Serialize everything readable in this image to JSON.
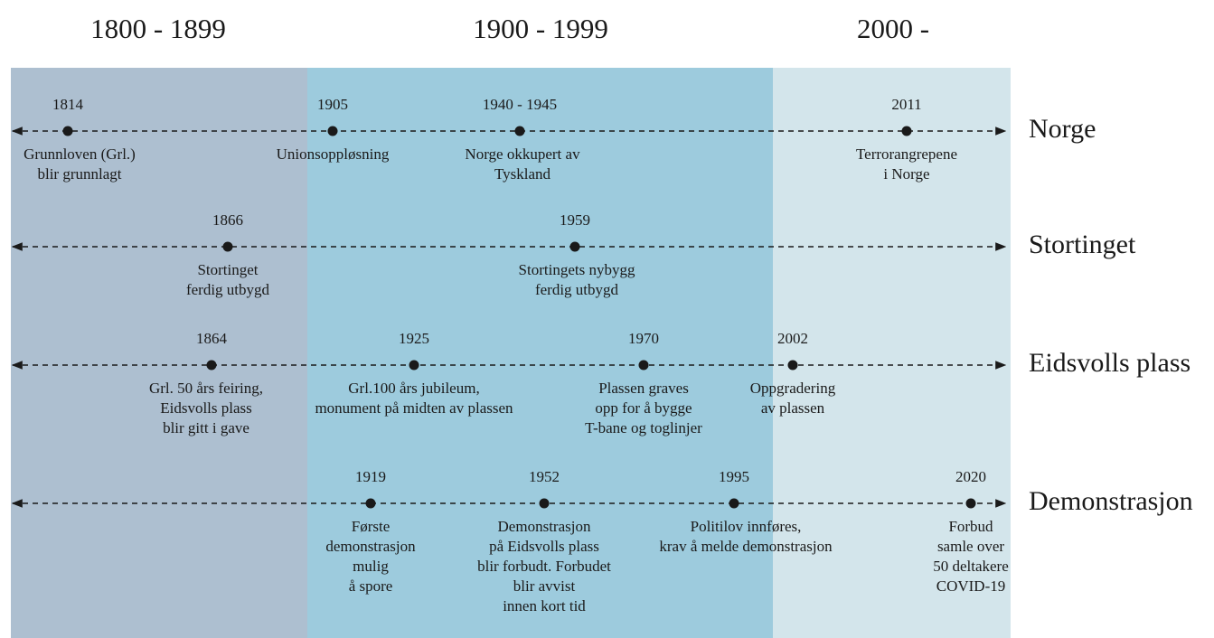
{
  "eras": [
    "1800 - 1899",
    "1900 - 1999",
    "2000 -"
  ],
  "rows": [
    {
      "name": "Norge",
      "events": [
        {
          "year": "1814",
          "lines": [
            "Grunnloven (Grl.)",
            "blir grunnlagt"
          ]
        },
        {
          "year": "1905",
          "lines": [
            "Unionsoppløsning"
          ]
        },
        {
          "year": "1940 - 1945",
          "lines": [
            "Norge okkupert av",
            "Tyskland"
          ]
        },
        {
          "year": "2011",
          "lines": [
            "Terrorangrepene",
            "i Norge"
          ]
        }
      ]
    },
    {
      "name": "Stortinget",
      "events": [
        {
          "year": "1866",
          "lines": [
            "Stortinget",
            "ferdig utbygd"
          ]
        },
        {
          "year": "1959",
          "lines": [
            "Stortingets nybygg",
            "ferdig utbygd"
          ]
        }
      ]
    },
    {
      "name": "Eidsvolls plass",
      "events": [
        {
          "year": "1864",
          "lines": [
            "Grl. 50 års feiring,",
            "Eidsvolls plass",
            "blir gitt i gave"
          ]
        },
        {
          "year": "1925",
          "lines": [
            "Grl.100 års jubileum,",
            "monument på midten av plassen"
          ]
        },
        {
          "year": "1970",
          "lines": [
            "Plassen graves",
            "opp for å bygge",
            "T-bane og toglinjer"
          ]
        },
        {
          "year": "2002",
          "lines": [
            "Oppgradering",
            "av plassen"
          ]
        }
      ]
    },
    {
      "name": "Demonstrasjon",
      "events": [
        {
          "year": "1919",
          "lines": [
            "Første",
            "demonstrasjon",
            "mulig",
            "å spore"
          ]
        },
        {
          "year": "1952",
          "lines": [
            "Demonstrasjon",
            "på Eidsvolls plass",
            "blir forbudt. Forbudet",
            "blir avvist",
            "innen kort tid"
          ]
        },
        {
          "year": "1995",
          "lines": [
            "Politilov innføres,",
            "krav å melde demonstrasjon"
          ]
        },
        {
          "year": "2020",
          "lines": [
            "Forbud",
            "samle over",
            "50 deltakere",
            "COVID-19"
          ]
        }
      ]
    }
  ]
}
